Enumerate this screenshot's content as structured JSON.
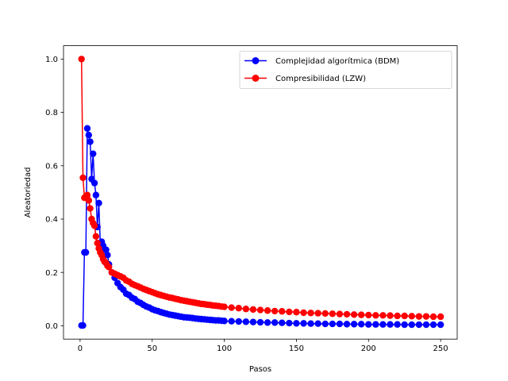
{
  "chart_data": {
    "type": "line",
    "title": "",
    "xlabel": "Pasos",
    "ylabel": "Aleatoriedad",
    "xlim": [
      -11.5,
      261.5
    ],
    "ylim": [
      -0.05,
      1.05
    ],
    "xticks": [
      0,
      50,
      100,
      150,
      200,
      250
    ],
    "yticks": [
      0.0,
      0.2,
      0.4,
      0.6,
      0.8,
      1.0
    ],
    "xtick_labels": [
      "0",
      "50",
      "100",
      "150",
      "200",
      "250"
    ],
    "ytick_labels": [
      "0.0",
      "0.2",
      "0.4",
      "0.6",
      "0.8",
      "1.0"
    ],
    "grid": false,
    "legend_position": "upper right",
    "x": [
      1,
      2,
      3,
      4,
      5,
      6,
      7,
      8,
      9,
      10,
      11,
      12,
      13,
      14,
      15,
      16,
      17,
      18,
      19,
      20,
      22,
      24,
      26,
      28,
      30,
      32,
      34,
      36,
      38,
      40,
      42,
      44,
      46,
      48,
      50,
      52,
      54,
      56,
      58,
      60,
      62,
      64,
      66,
      68,
      70,
      72,
      74,
      76,
      78,
      80,
      82,
      84,
      86,
      88,
      90,
      92,
      94,
      96,
      98,
      100,
      105,
      110,
      115,
      120,
      125,
      130,
      135,
      140,
      145,
      150,
      155,
      160,
      165,
      170,
      175,
      180,
      185,
      190,
      195,
      200,
      205,
      210,
      215,
      220,
      225,
      230,
      235,
      240,
      245,
      250
    ],
    "series": [
      {
        "name": "Complejidad algorítmica (BDM)",
        "color": "#0000ff",
        "marker": "circle",
        "values": [
          0.001,
          0.001,
          0.275,
          0.275,
          0.74,
          0.715,
          0.69,
          0.55,
          0.645,
          0.535,
          0.49,
          0.37,
          0.46,
          0.31,
          0.315,
          0.3,
          0.285,
          0.285,
          0.265,
          0.23,
          0.2,
          0.18,
          0.16,
          0.145,
          0.135,
          0.12,
          0.115,
          0.105,
          0.1,
          0.09,
          0.085,
          0.078,
          0.072,
          0.068,
          0.062,
          0.058,
          0.055,
          0.051,
          0.048,
          0.045,
          0.042,
          0.04,
          0.038,
          0.036,
          0.034,
          0.032,
          0.031,
          0.03,
          0.029,
          0.027,
          0.026,
          0.025,
          0.024,
          0.023,
          0.022,
          0.021,
          0.02,
          0.02,
          0.019,
          0.018,
          0.017,
          0.016,
          0.015,
          0.014,
          0.013,
          0.012,
          0.012,
          0.011,
          0.01,
          0.009,
          0.009,
          0.008,
          0.008,
          0.007,
          0.007,
          0.007,
          0.006,
          0.006,
          0.006,
          0.005,
          0.005,
          0.005,
          0.005,
          0.005,
          0.004,
          0.004,
          0.004,
          0.004,
          0.004,
          0.004
        ]
      },
      {
        "name": "Compresibilidad (LZW)",
        "color": "#ff0000",
        "marker": "circle",
        "values": [
          1.0,
          0.555,
          0.48,
          0.485,
          0.49,
          0.47,
          0.44,
          0.4,
          0.385,
          0.375,
          0.335,
          0.31,
          0.29,
          0.275,
          0.265,
          0.25,
          0.24,
          0.235,
          0.225,
          0.22,
          0.2,
          0.195,
          0.19,
          0.185,
          0.18,
          0.17,
          0.165,
          0.157,
          0.152,
          0.148,
          0.143,
          0.138,
          0.134,
          0.13,
          0.126,
          0.122,
          0.118,
          0.115,
          0.112,
          0.109,
          0.106,
          0.104,
          0.101,
          0.099,
          0.096,
          0.094,
          0.092,
          0.09,
          0.088,
          0.086,
          0.084,
          0.082,
          0.081,
          0.079,
          0.078,
          0.076,
          0.075,
          0.074,
          0.072,
          0.071,
          0.068,
          0.066,
          0.063,
          0.061,
          0.059,
          0.057,
          0.055,
          0.054,
          0.052,
          0.051,
          0.049,
          0.048,
          0.047,
          0.046,
          0.045,
          0.044,
          0.043,
          0.042,
          0.041,
          0.04,
          0.039,
          0.039,
          0.038,
          0.037,
          0.037,
          0.036,
          0.035,
          0.035,
          0.034,
          0.034
        ]
      }
    ]
  }
}
